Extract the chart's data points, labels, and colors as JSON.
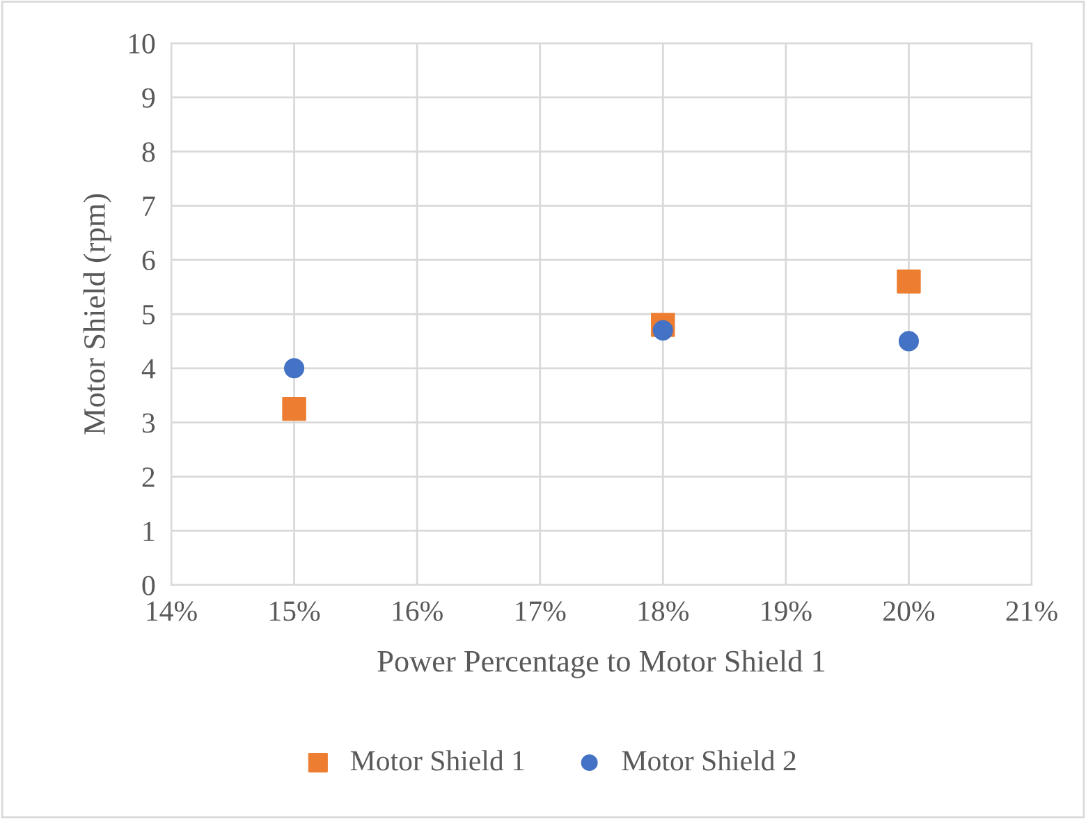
{
  "chart_data": {
    "type": "scatter",
    "xlabel": "Power Percentage to Motor Shield 1",
    "ylabel": "Motor Shield (rpm)",
    "x": [
      15,
      18,
      20
    ],
    "series": [
      {
        "name": "Motor Shield 1",
        "color": "#ed7d31",
        "marker": "square",
        "values": [
          3.25,
          4.8,
          5.6
        ]
      },
      {
        "name": "Motor Shield 2",
        "color": "#4472c4",
        "marker": "circle",
        "values": [
          4.0,
          4.7,
          4.5
        ]
      }
    ],
    "xlim": [
      14,
      21
    ],
    "xticks": [
      {
        "value": 14,
        "label": "14%"
      },
      {
        "value": 15,
        "label": "15%"
      },
      {
        "value": 16,
        "label": "16%"
      },
      {
        "value": 17,
        "label": "17%"
      },
      {
        "value": 18,
        "label": "18%"
      },
      {
        "value": 19,
        "label": "19%"
      },
      {
        "value": 20,
        "label": "20%"
      },
      {
        "value": 21,
        "label": "21%"
      }
    ],
    "ylim": [
      0,
      10
    ],
    "yticks": [
      0,
      1,
      2,
      3,
      4,
      5,
      6,
      7,
      8,
      9,
      10
    ],
    "grid": true,
    "legend": "bottom"
  }
}
